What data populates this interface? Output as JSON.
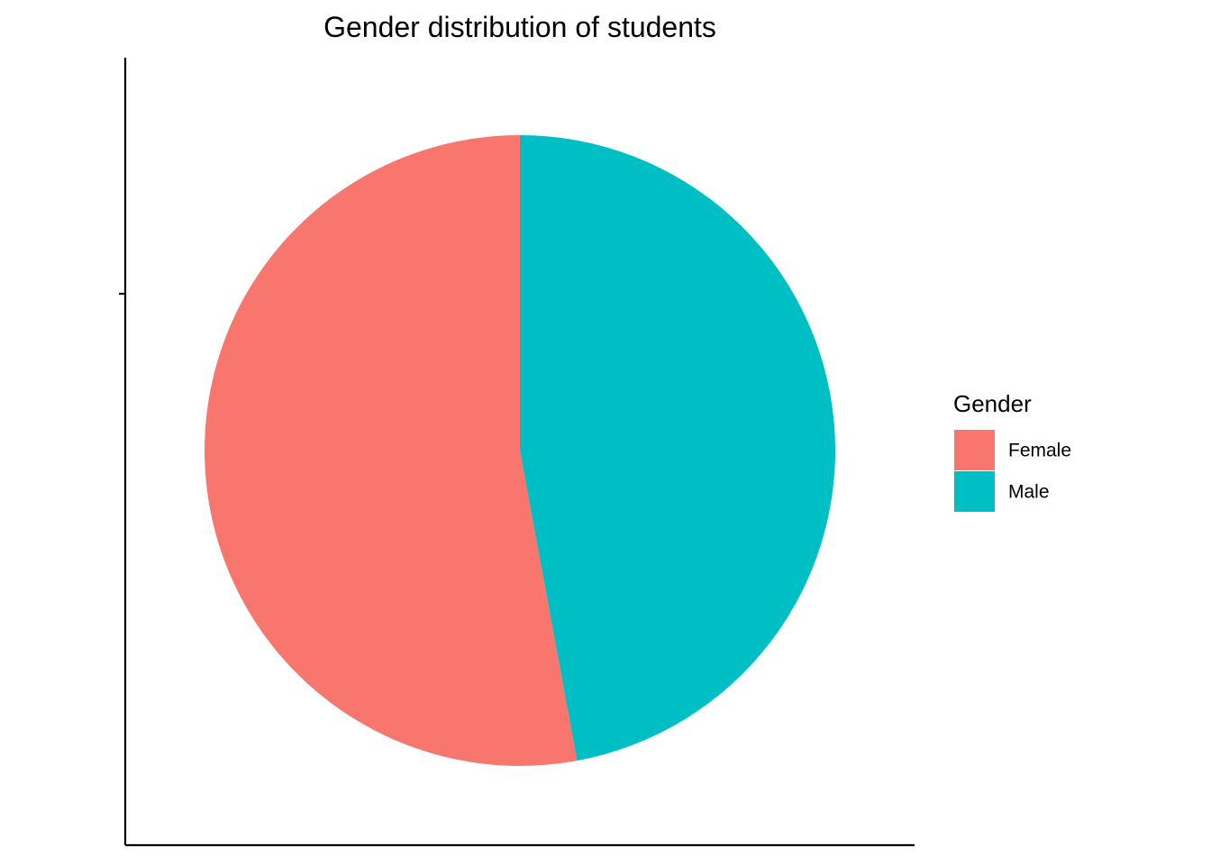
{
  "chart_data": {
    "type": "pie",
    "title": "Gender distribution of students",
    "legend": {
      "title": "Gender",
      "position": "right"
    },
    "slices": [
      {
        "name": "Female",
        "value": 52.9,
        "color": "#F8766D"
      },
      {
        "name": "Male",
        "value": 47.1,
        "color": "#00BFC4"
      }
    ],
    "start_angle": "12 o'clock",
    "direction": "counter-clockwise for Female, Male fills remaining"
  }
}
